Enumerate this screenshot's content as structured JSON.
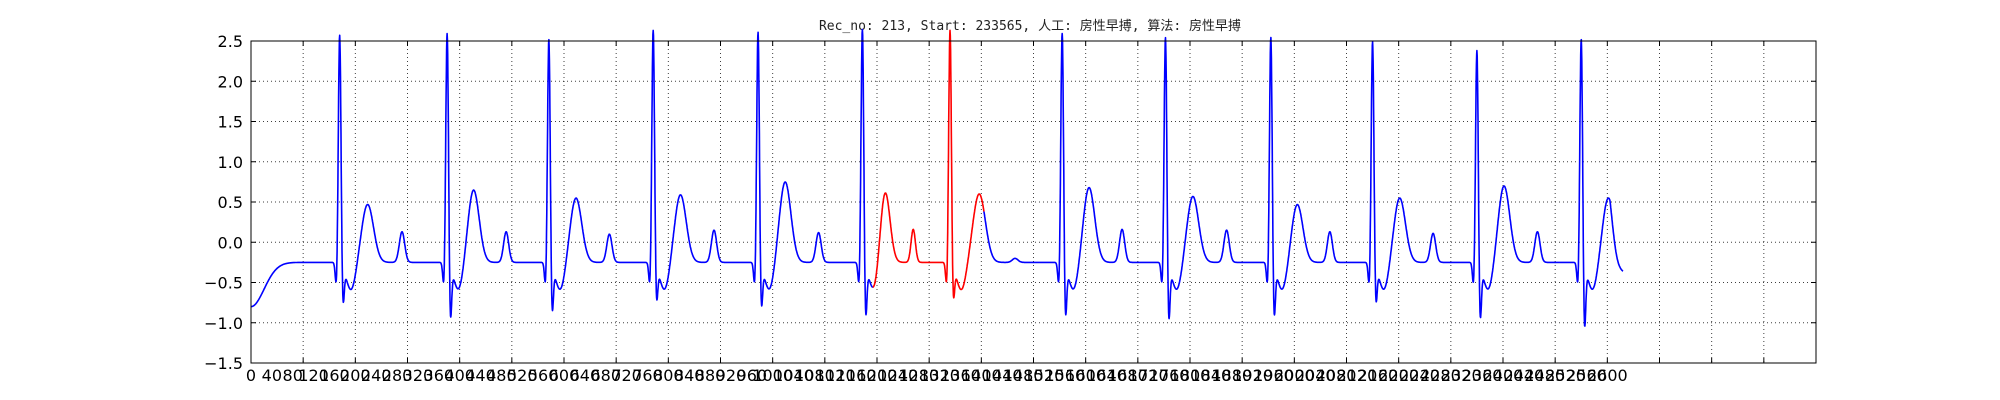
{
  "chart_data": {
    "type": "line",
    "title": "Rec_no: 213, Start: 233565, 人工: 房性早搏, 算法: 房性早搏",
    "xlabel": "",
    "ylabel": "",
    "xlim": [
      0,
      3000
    ],
    "ylim": [
      -1.5,
      2.5
    ],
    "grid": true,
    "yticks": [
      -1.5,
      -1.0,
      -0.5,
      0.0,
      0.5,
      1.0,
      1.5,
      2.0,
      2.5
    ],
    "yticklabels": [
      "−1.5",
      "−1.0",
      "−0.5",
      "0.0",
      "0.5",
      "1.0",
      "1.5",
      "2.0",
      "2.5"
    ],
    "xticks": [
      0,
      40,
      80,
      120,
      160,
      200,
      240,
      280,
      320,
      360,
      400,
      440,
      480,
      520,
      560,
      600,
      640,
      680,
      720,
      760,
      800,
      840,
      880,
      920,
      960,
      1000,
      1040,
      1080,
      1120,
      1160,
      1200,
      1240,
      1280,
      1320,
      1360,
      1400,
      1440,
      1480,
      1520,
      1560,
      1600,
      1640,
      1680,
      1720,
      1760,
      1800,
      1840,
      1880,
      1920,
      1960,
      2000,
      2040,
      2080,
      2120,
      2160,
      2200,
      2240,
      2280,
      2320,
      2360,
      2400,
      2440,
      2480,
      2520,
      2560,
      2600
    ],
    "xticklabels": [
      "0",
      "40",
      "80",
      "120",
      "160",
      "200",
      "240",
      "280",
      "320",
      "360",
      "400",
      "440",
      "480",
      "520",
      "560",
      "600",
      "640",
      "680",
      "720",
      "760",
      "800",
      "840",
      "880",
      "920",
      "960",
      "1000",
      "1040",
      "1080",
      "1120",
      "1160",
      "1200",
      "1240",
      "1280",
      "1320",
      "1360",
      "1400",
      "1440",
      "1480",
      "1520",
      "1560",
      "1600",
      "1640",
      "1680",
      "1720",
      "1760",
      "1800",
      "1840",
      "1880",
      "1920",
      "1960",
      "2000",
      "2040",
      "2080",
      "2120",
      "2160",
      "2200",
      "2240",
      "2280",
      "2320",
      "2360",
      "2400",
      "2440",
      "2480",
      "2520",
      "2560",
      "2600"
    ],
    "beats": [
      {
        "r": 170,
        "peak": 2.32,
        "s": -0.88,
        "p": 0.32,
        "t": 0.13,
        "color": "#0000ff"
      },
      {
        "r": 376,
        "peak": 2.35,
        "s": -1.08,
        "p": 0.5,
        "t": 0.13,
        "color": "#0000ff"
      },
      {
        "r": 571,
        "peak": 2.27,
        "s": -0.99,
        "p": 0.4,
        "t": 0.1,
        "color": "#0000ff"
      },
      {
        "r": 771,
        "peak": 2.38,
        "s": -0.85,
        "p": 0.44,
        "t": 0.15,
        "color": "#0000ff"
      },
      {
        "r": 972,
        "peak": 2.36,
        "s": -0.93,
        "p": 0.6,
        "t": 0.12,
        "color": "#0000ff"
      },
      {
        "r": 1172,
        "peak": 2.4,
        "s": -1.05,
        "p": 0.48,
        "t": 0.16,
        "color": "#0000ff"
      },
      {
        "r": 1340,
        "peak": 2.38,
        "s": -0.82,
        "p": 0.45,
        "t": -0.2,
        "color": "#ff0000"
      },
      {
        "r": 1555,
        "peak": 2.35,
        "s": -1.05,
        "p": 0.53,
        "t": 0.16,
        "color": "#0000ff"
      },
      {
        "r": 1753,
        "peak": 2.3,
        "s": -1.1,
        "p": 0.42,
        "t": 0.15,
        "color": "#0000ff"
      },
      {
        "r": 1955,
        "peak": 2.3,
        "s": -1.05,
        "p": 0.32,
        "t": 0.13,
        "color": "#0000ff"
      },
      {
        "r": 2150,
        "peak": 2.24,
        "s": -0.87,
        "p": 0.4,
        "t": 0.11,
        "color": "#0000ff"
      },
      {
        "r": 2350,
        "peak": 2.14,
        "s": -1.08,
        "p": 0.55,
        "t": 0.13,
        "color": "#0000ff"
      },
      {
        "r": 2550,
        "peak": 2.28,
        "s": -1.2,
        "p": 0.4,
        "t": 0.05,
        "color": "#0000ff"
      }
    ],
    "series_end_x": 2630,
    "series_end_y": -0.36
  }
}
